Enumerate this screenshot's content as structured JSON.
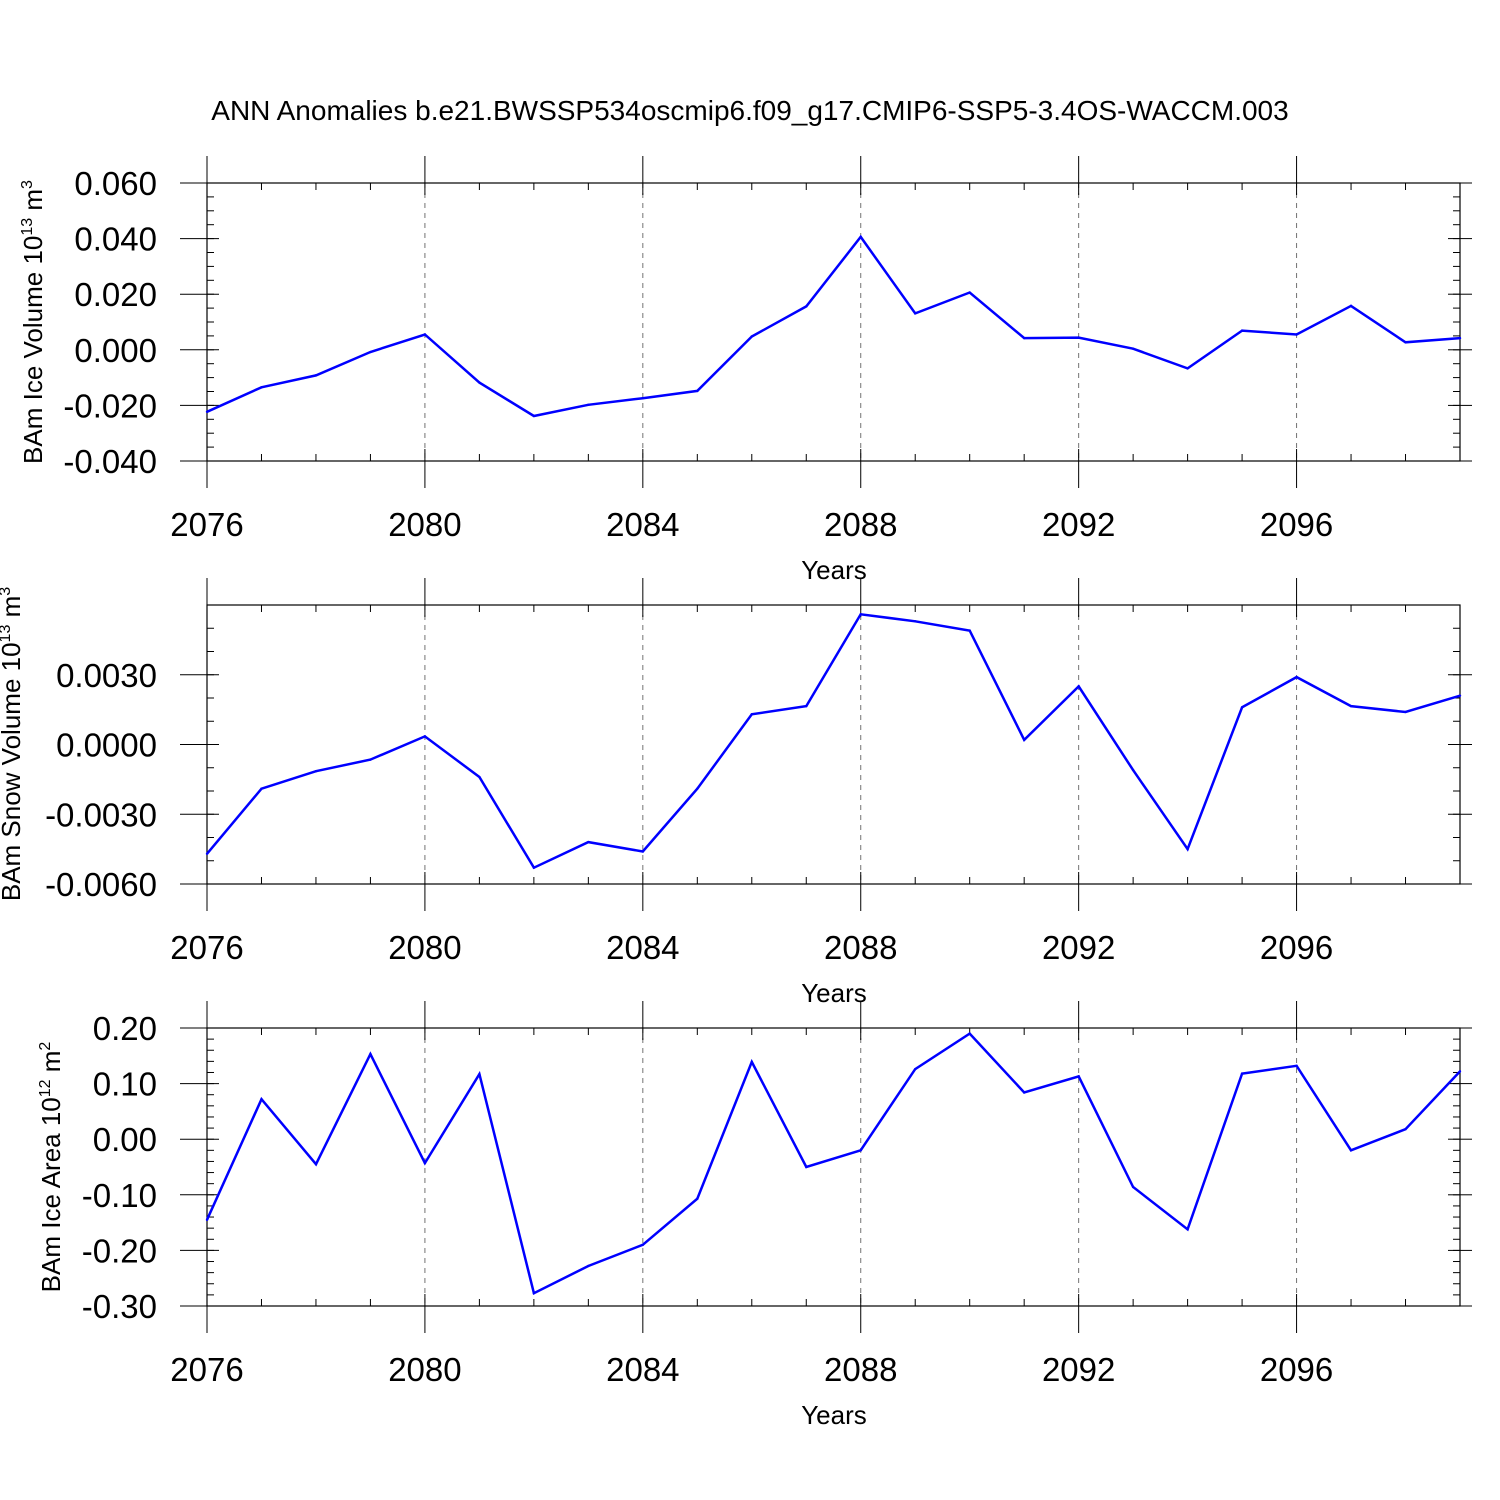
{
  "title": "ANN Anomalies b.e21.BWSSP534oscmip6.f09_g17.CMIP6-SSP5-3.4OS-WACCM.003",
  "chart_data": [
    {
      "type": "line",
      "ylabel_main": "BAm Ice Volume 10",
      "ylabel_exp": "13",
      "ylabel_unit": " m",
      "ylabel_unit_exp": "3",
      "xlabel": "Years",
      "xlim": [
        2076,
        2099
      ],
      "ylim": [
        -0.04,
        0.06
      ],
      "yticks": [
        -0.04,
        -0.02,
        0.0,
        0.02,
        0.04,
        0.06
      ],
      "ytick_labels": [
        "-0.040",
        "-0.020",
        "0.000",
        "0.020",
        "0.040",
        "0.060"
      ],
      "yminor_step": 0.005,
      "xticks": [
        2076,
        2080,
        2084,
        2088,
        2092,
        2096
      ],
      "xtick_labels": [
        "2076",
        "2080",
        "2084",
        "2088",
        "2092",
        "2096"
      ],
      "x": [
        2076,
        2077,
        2078,
        2079,
        2080,
        2081,
        2082,
        2083,
        2084,
        2085,
        2086,
        2087,
        2088,
        2089,
        2090,
        2091,
        2092,
        2093,
        2094,
        2095,
        2096,
        2097,
        2098,
        2099
      ],
      "values": [
        -0.0223,
        -0.0135,
        -0.0092,
        -0.0008,
        0.0055,
        -0.0118,
        -0.0238,
        -0.0198,
        -0.0174,
        -0.0148,
        0.0048,
        0.0156,
        0.0406,
        0.0131,
        0.0206,
        0.0042,
        0.0044,
        0.0004,
        -0.0067,
        0.0069,
        0.0055,
        0.0158,
        0.0027,
        0.0042
      ]
    },
    {
      "type": "line",
      "ylabel_main": "BAm Snow Volume 10",
      "ylabel_exp": "13",
      "ylabel_unit": " m",
      "ylabel_unit_exp": "3",
      "xlabel": "Years",
      "xlim": [
        2076,
        2099
      ],
      "ylim": [
        -0.006,
        0.006
      ],
      "yticks": [
        -0.006,
        -0.003,
        0.0,
        0.003
      ],
      "ytick_labels": [
        "-0.0060",
        "-0.0030",
        "0.0000",
        "0.0030"
      ],
      "yminor_step": 0.001,
      "xticks": [
        2076,
        2080,
        2084,
        2088,
        2092,
        2096
      ],
      "xtick_labels": [
        "2076",
        "2080",
        "2084",
        "2088",
        "2092",
        "2096"
      ],
      "x": [
        2076,
        2077,
        2078,
        2079,
        2080,
        2081,
        2082,
        2083,
        2084,
        2085,
        2086,
        2087,
        2088,
        2089,
        2090,
        2091,
        2092,
        2093,
        2094,
        2095,
        2096,
        2097,
        2098,
        2099
      ],
      "values": [
        -0.0047,
        -0.0019,
        -0.00115,
        -0.00065,
        0.00035,
        -0.0014,
        -0.0053,
        -0.0042,
        -0.0046,
        -0.0019,
        0.0013,
        0.00165,
        0.0056,
        0.0053,
        0.0049,
        0.0002,
        0.0025,
        -0.0011,
        -0.0045,
        0.0016,
        0.0029,
        0.00165,
        0.0014,
        0.0021
      ]
    },
    {
      "type": "line",
      "ylabel_main": "BAm Ice Area 10",
      "ylabel_exp": "12",
      "ylabel_unit": " m",
      "ylabel_unit_exp": "2",
      "xlabel": "Years",
      "xlim": [
        2076,
        2099
      ],
      "ylim": [
        -0.3,
        0.2
      ],
      "yticks": [
        -0.3,
        -0.2,
        -0.1,
        0.0,
        0.1,
        0.2
      ],
      "ytick_labels": [
        "-0.30",
        "-0.20",
        "-0.10",
        "0.00",
        "0.10",
        "0.20"
      ],
      "yminor_step": 0.02,
      "xticks": [
        2076,
        2080,
        2084,
        2088,
        2092,
        2096
      ],
      "xtick_labels": [
        "2076",
        "2080",
        "2084",
        "2088",
        "2092",
        "2096"
      ],
      "x": [
        2076,
        2077,
        2078,
        2079,
        2080,
        2081,
        2082,
        2083,
        2084,
        2085,
        2086,
        2087,
        2088,
        2089,
        2090,
        2091,
        2092,
        2093,
        2094,
        2095,
        2096,
        2097,
        2098,
        2099
      ],
      "values": [
        -0.145,
        0.072,
        -0.045,
        0.153,
        -0.043,
        0.117,
        -0.277,
        -0.228,
        -0.19,
        -0.107,
        0.139,
        -0.05,
        -0.02,
        0.126,
        0.19,
        0.084,
        0.113,
        -0.086,
        -0.162,
        0.118,
        0.132,
        -0.02,
        0.018,
        0.122
      ]
    }
  ]
}
